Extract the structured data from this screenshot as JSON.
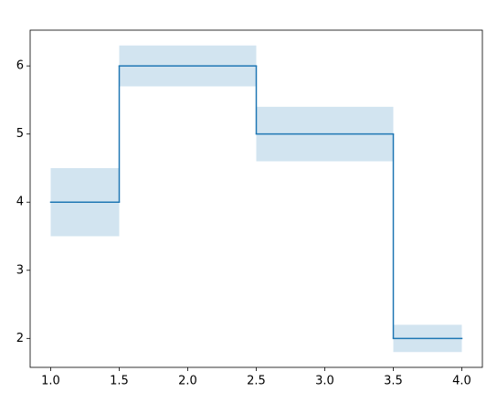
{
  "chart_data": {
    "type": "step",
    "step": "mid",
    "x": [
      1,
      2,
      3,
      4
    ],
    "values": [
      4,
      6,
      5,
      2
    ],
    "errors": [
      0.5,
      0.3,
      0.4,
      0.2
    ],
    "color": "#1f77b4",
    "fill_color": "#1f77b4",
    "fill_opacity": 0.2,
    "xlim": [
      0.85,
      4.15
    ],
    "ylim": [
      1.575,
      6.525
    ],
    "xticks": [
      {
        "value": 1,
        "label": "1.0"
      },
      {
        "value": 1.5,
        "label": "1.5"
      },
      {
        "value": 2,
        "label": "2.0"
      },
      {
        "value": 2.5,
        "label": "2.5"
      },
      {
        "value": 3,
        "label": "3.0"
      },
      {
        "value": 3.5,
        "label": "3.5"
      },
      {
        "value": 4,
        "label": "4.0"
      }
    ],
    "yticks": [
      2,
      3,
      4,
      5,
      6
    ]
  }
}
